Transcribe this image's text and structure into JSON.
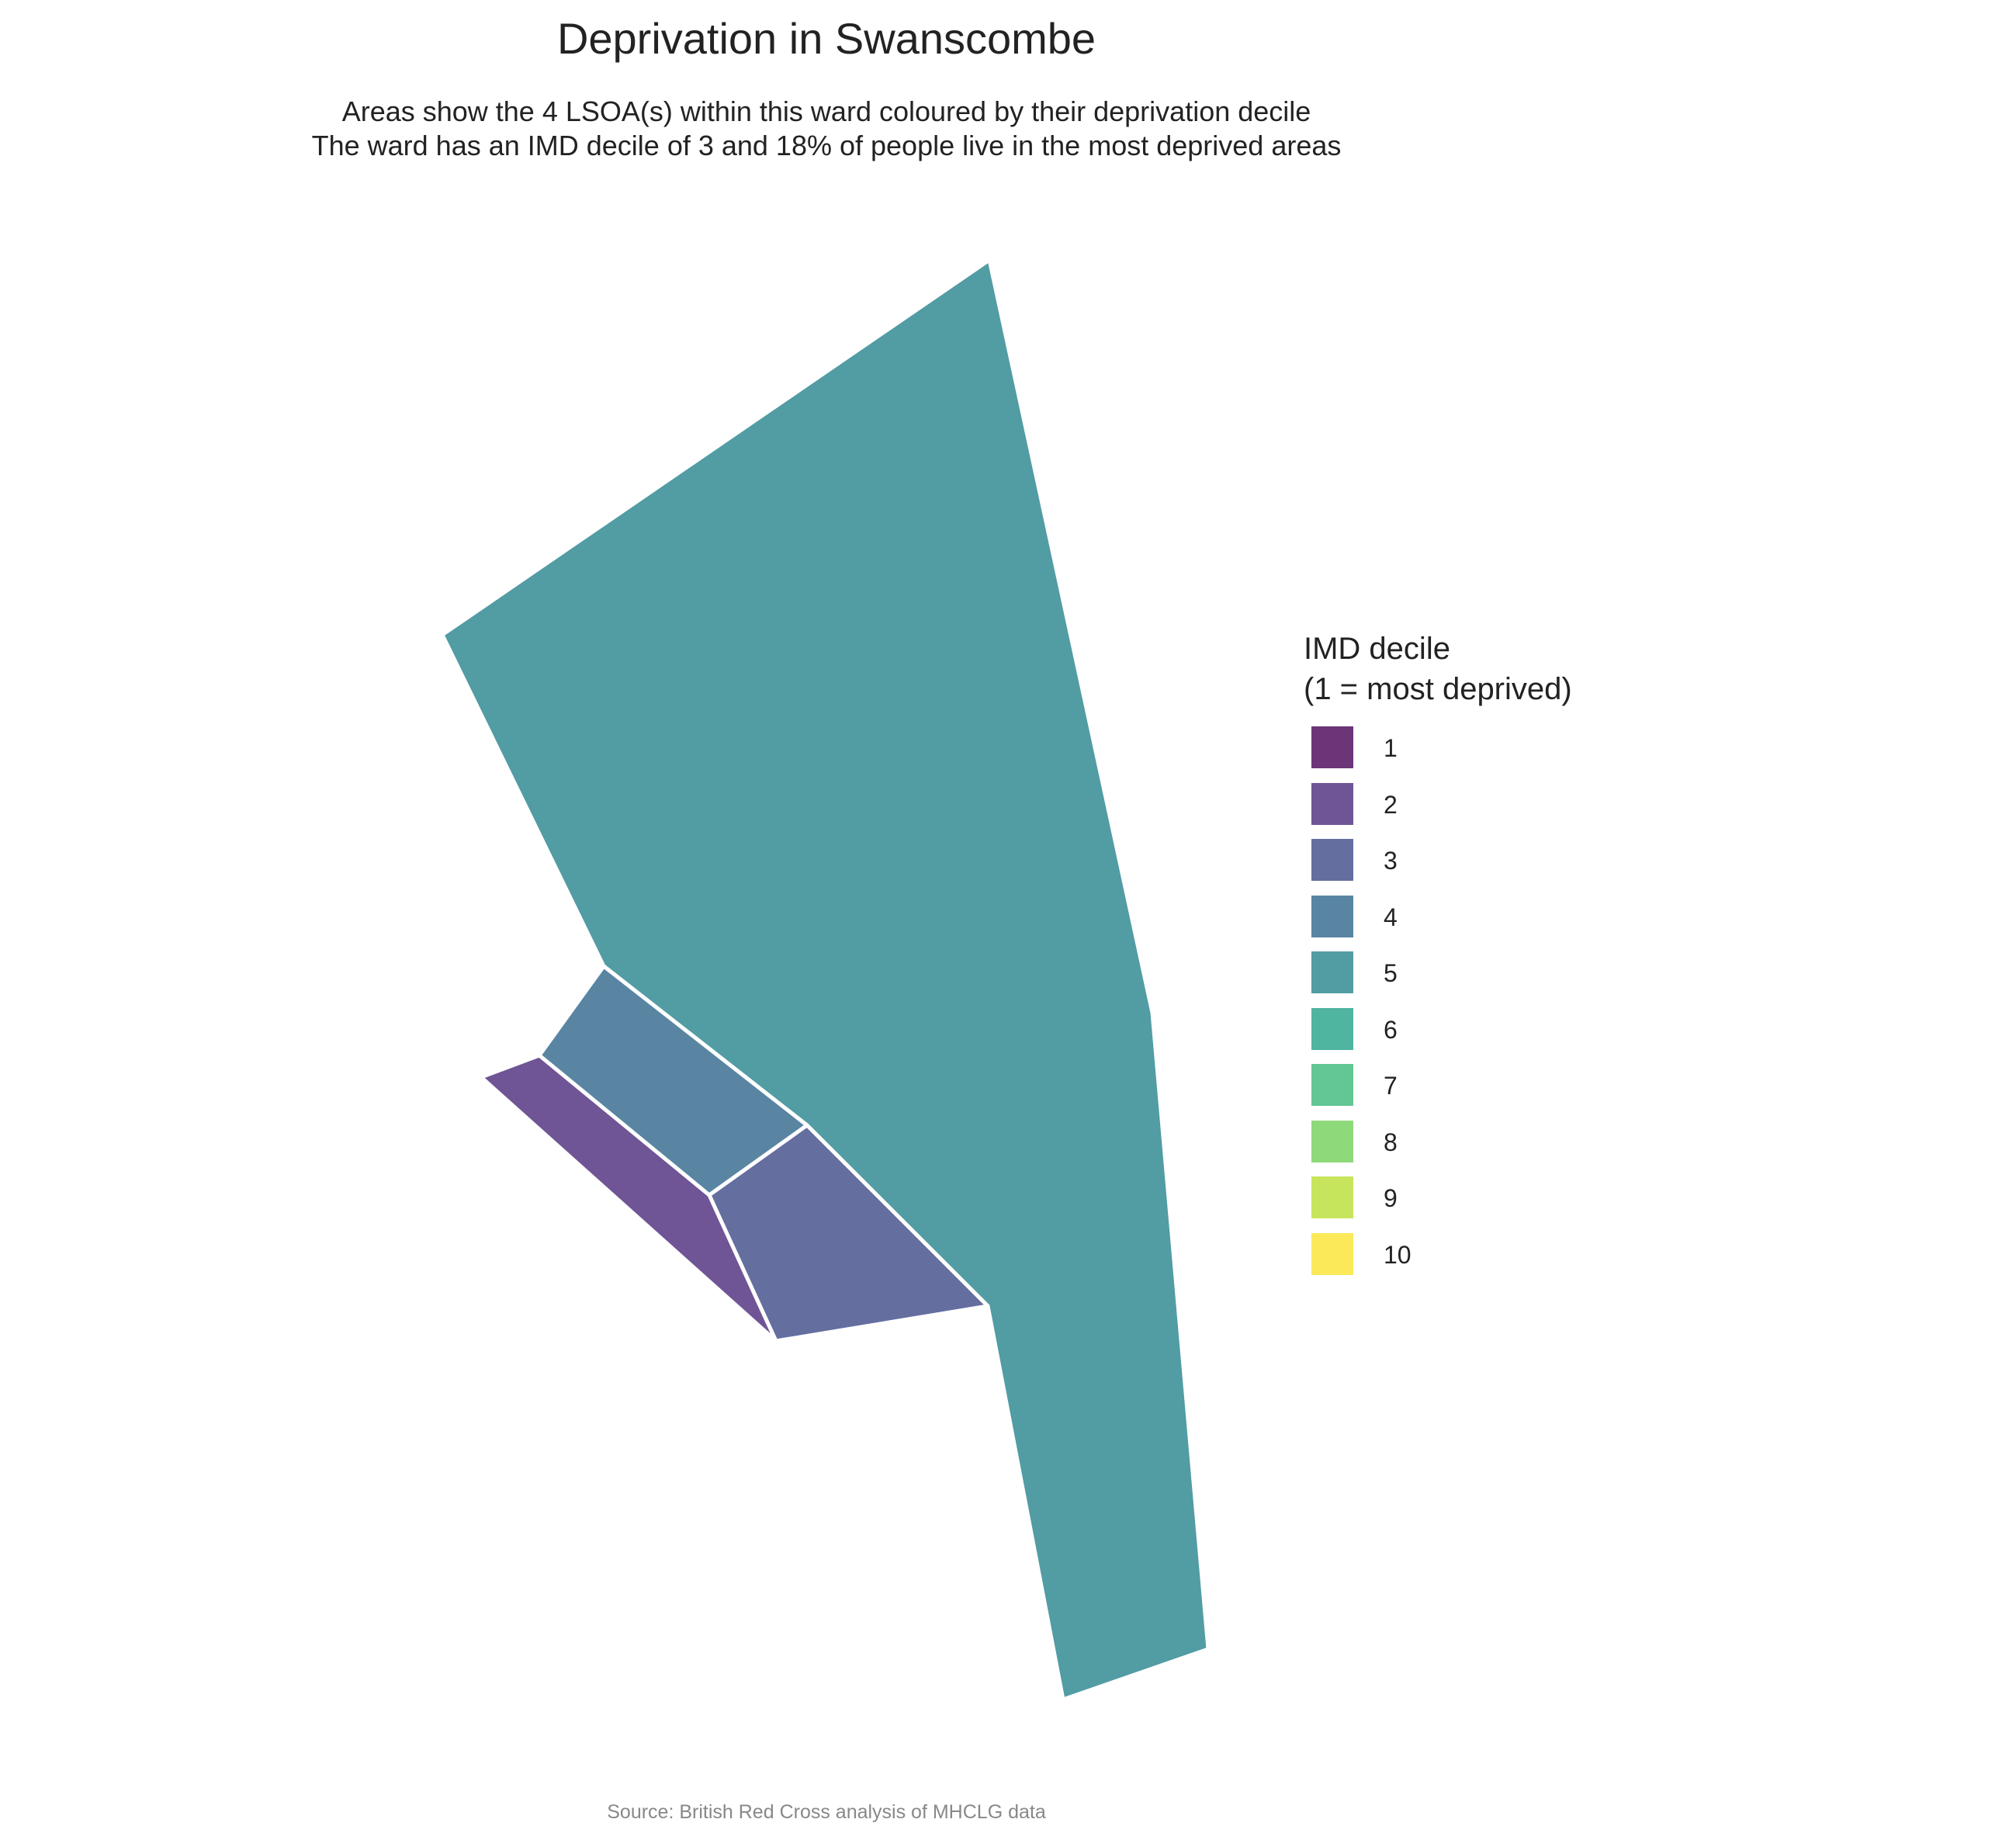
{
  "title": "Deprivation in Swanscombe",
  "subtitle_line1": "Areas show the 4 LSOA(s) within this ward coloured by their deprivation decile",
  "subtitle_line2": "The ward has an IMD decile of 3 and 18% of people live in the most deprived areas",
  "legend": {
    "title_line1": "IMD decile",
    "title_line2": "(1 = most deprived)",
    "items": [
      {
        "label": "1",
        "color": "#6b3577"
      },
      {
        "label": "2",
        "color": "#6f5595"
      },
      {
        "label": "3",
        "color": "#646e9f"
      },
      {
        "label": "4",
        "color": "#5985a3"
      },
      {
        "label": "5",
        "color": "#529ca4"
      },
      {
        "label": "6",
        "color": "#4fb4a0"
      },
      {
        "label": "7",
        "color": "#62c794"
      },
      {
        "label": "8",
        "color": "#8ed97a"
      },
      {
        "label": "9",
        "color": "#c7e55c"
      },
      {
        "label": "10",
        "color": "#fbe95a"
      }
    ]
  },
  "areas": [
    {
      "name": "lsoa-decile-5",
      "decile": 5
    },
    {
      "name": "lsoa-decile-4",
      "decile": 4
    },
    {
      "name": "lsoa-decile-3",
      "decile": 3
    },
    {
      "name": "lsoa-decile-2",
      "decile": 2
    }
  ],
  "source": "Source: British Red Cross analysis of MHCLG data"
}
